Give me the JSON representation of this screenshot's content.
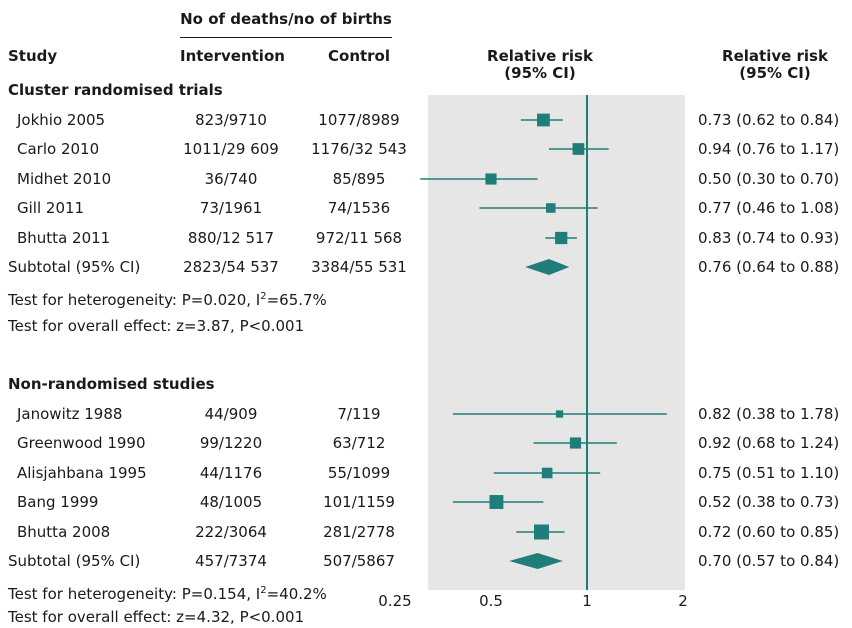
{
  "header": {
    "group_heading": "No of deaths/no of births",
    "study": "Study",
    "intervention": "Intervention",
    "control": "Control",
    "rr_plot_1": "Relative risk",
    "rr_plot_2": "(95% CI)",
    "rr_col_1": "Relative risk",
    "rr_col_2": "(95% CI)"
  },
  "groups": [
    {
      "title": "Cluster randomised trials",
      "studies": [
        {
          "name": "Jokhio 2005",
          "intervention": "823/9710",
          "control": "1077/8989",
          "rr_text": "0.73 (0.62 to 0.84)"
        },
        {
          "name": "Carlo 2010",
          "intervention": "1011/29 609",
          "control": "1176/32 543",
          "rr_text": "0.94 (0.76 to 1.17)"
        },
        {
          "name": "Midhet 2010",
          "intervention": "36/740",
          "control": "85/895",
          "rr_text": "0.50 (0.30 to 0.70)"
        },
        {
          "name": "Gill 2011",
          "intervention": "73/1961",
          "control": "74/1536",
          "rr_text": "0.77 (0.46 to 1.08)"
        },
        {
          "name": "Bhutta 2011",
          "intervention": "880/12 517",
          "control": "972/11 568",
          "rr_text": "0.83 (0.74 to 0.93)"
        }
      ],
      "subtotal": {
        "name": "Subtotal (95% CI)",
        "intervention": "2823/54 537",
        "control": "3384/55 531",
        "rr_text": "0.76 (0.64 to 0.88)"
      },
      "heterogeneity_prefix": "Test for heterogeneity: P=0.020, I",
      "heterogeneity_sup": "2",
      "heterogeneity_suffix": "=65.7%",
      "overall": "Test for overall effect: z=3.87, P<0.001"
    },
    {
      "title": "Non-randomised studies",
      "studies": [
        {
          "name": "Janowitz 1988",
          "intervention": "44/909",
          "control": "7/119",
          "rr_text": "0.82 (0.38 to 1.78)"
        },
        {
          "name": "Greenwood 1990",
          "intervention": "99/1220",
          "control": "63/712",
          "rr_text": "0.92 (0.68 to 1.24)"
        },
        {
          "name": "Alisjahbana 1995",
          "intervention": "44/1176",
          "control": "55/1099",
          "rr_text": "0.75 (0.51 to 1.10)"
        },
        {
          "name": "Bang 1999",
          "intervention": "48/1005",
          "control": "101/1159",
          "rr_text": "0.52 (0.38 to 0.73)"
        },
        {
          "name": "Bhutta 2008",
          "intervention": "222/3064",
          "control": "281/2778",
          "rr_text": "0.72 (0.60 to 0.85)"
        }
      ],
      "subtotal": {
        "name": "Subtotal (95% CI)",
        "intervention": "457/7374",
        "control": "507/5867",
        "rr_text": "0.70 (0.57 to 0.84)"
      },
      "heterogeneity_prefix": "Test for heterogeneity: P=0.154, I",
      "heterogeneity_sup": "2",
      "heterogeneity_suffix": "=40.2%",
      "overall": "Test for overall effect: z=4.32, P<0.001"
    }
  ],
  "chart_data": {
    "type": "forest",
    "scale": "log",
    "xlim": [
      0.25,
      2
    ],
    "null_line": 1,
    "x_ticks": [
      0.25,
      0.5,
      1,
      2
    ],
    "x_tick_labels": [
      "0.25",
      "0.5",
      "1",
      "2"
    ],
    "colors": {
      "marker": "#1f7d7a",
      "panel": "#e6e6e6",
      "null_line": "#1f7d7a"
    },
    "groups": [
      {
        "name": "Cluster randomised trials",
        "studies": [
          {
            "name": "Jokhio 2005",
            "rr": 0.73,
            "lo": 0.62,
            "hi": 0.84,
            "weight": 0.8
          },
          {
            "name": "Carlo 2010",
            "rr": 0.94,
            "lo": 0.76,
            "hi": 1.17,
            "weight": 0.7
          },
          {
            "name": "Midhet 2010",
            "rr": 0.5,
            "lo": 0.3,
            "hi": 0.7,
            "weight": 0.65
          },
          {
            "name": "Gill 2011",
            "rr": 0.77,
            "lo": 0.46,
            "hi": 1.08,
            "weight": 0.5
          },
          {
            "name": "Bhutta 2011",
            "rr": 0.83,
            "lo": 0.74,
            "hi": 0.93,
            "weight": 0.75
          }
        ],
        "subtotal": {
          "rr": 0.76,
          "lo": 0.64,
          "hi": 0.88
        }
      },
      {
        "name": "Non-randomised studies",
        "studies": [
          {
            "name": "Janowitz 1988",
            "rr": 0.82,
            "lo": 0.38,
            "hi": 1.78,
            "weight": 0.3
          },
          {
            "name": "Greenwood 1990",
            "rr": 0.92,
            "lo": 0.68,
            "hi": 1.24,
            "weight": 0.65
          },
          {
            "name": "Alisjahbana 1995",
            "rr": 0.75,
            "lo": 0.51,
            "hi": 1.1,
            "weight": 0.6
          },
          {
            "name": "Bang 1999",
            "rr": 0.52,
            "lo": 0.38,
            "hi": 0.73,
            "weight": 0.9
          },
          {
            "name": "Bhutta 2008",
            "rr": 0.72,
            "lo": 0.6,
            "hi": 0.85,
            "weight": 1.0
          }
        ],
        "subtotal": {
          "rr": 0.7,
          "lo": 0.57,
          "hi": 0.84
        }
      }
    ]
  }
}
